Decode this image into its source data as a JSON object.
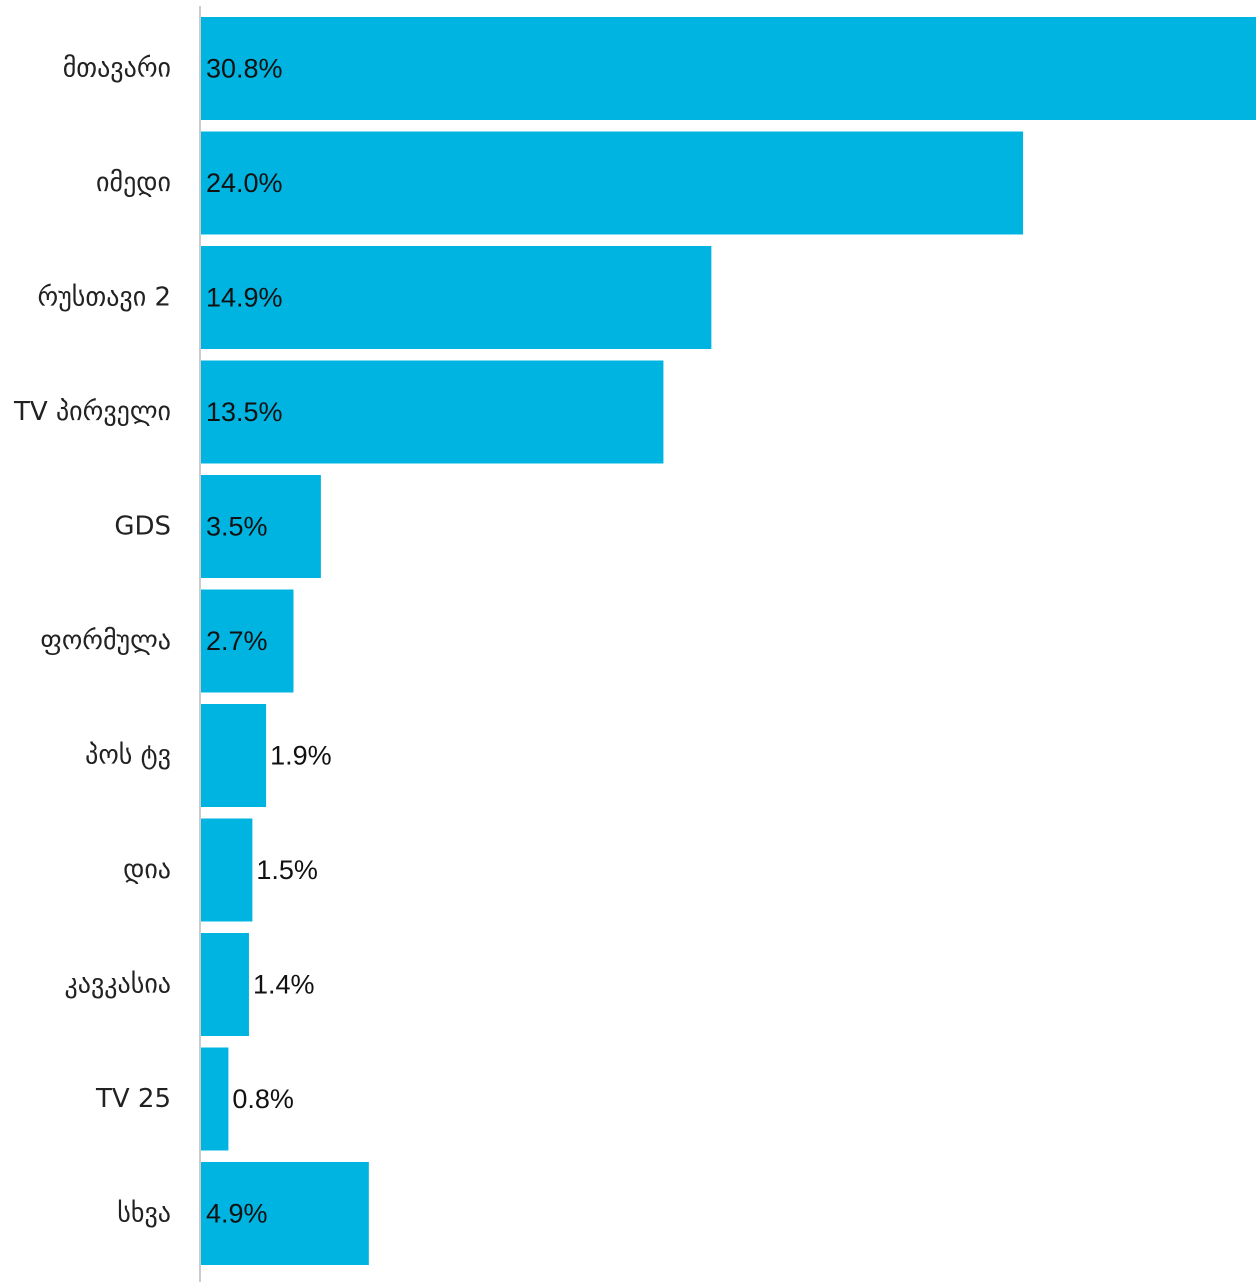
{
  "chart_data": {
    "type": "bar",
    "orientation": "horizontal",
    "title": "",
    "xlabel": "",
    "ylabel": "",
    "categories": [
      "მთავარი",
      "იმედი",
      "რუსთავი 2",
      "TV პირველი",
      "GDS",
      "ფორმულა",
      "პოს ტვ",
      "დია",
      "კავკასია",
      "TV 25",
      "სხვა"
    ],
    "values": [
      30.8,
      24.0,
      14.9,
      13.5,
      3.5,
      2.7,
      1.9,
      1.5,
      1.4,
      0.8,
      4.9
    ],
    "value_labels": [
      "30.8%",
      "24.0%",
      "14.9%",
      "13.5%",
      "3.5%",
      "2.7%",
      "1.9%",
      "1.5%",
      "1.4%",
      "0.8%",
      "4.9%"
    ],
    "xlim": [
      0,
      30.8
    ],
    "grid": false,
    "legend": "none",
    "bar_color": "#00b4e1",
    "axis_color": "#cccccc"
  }
}
